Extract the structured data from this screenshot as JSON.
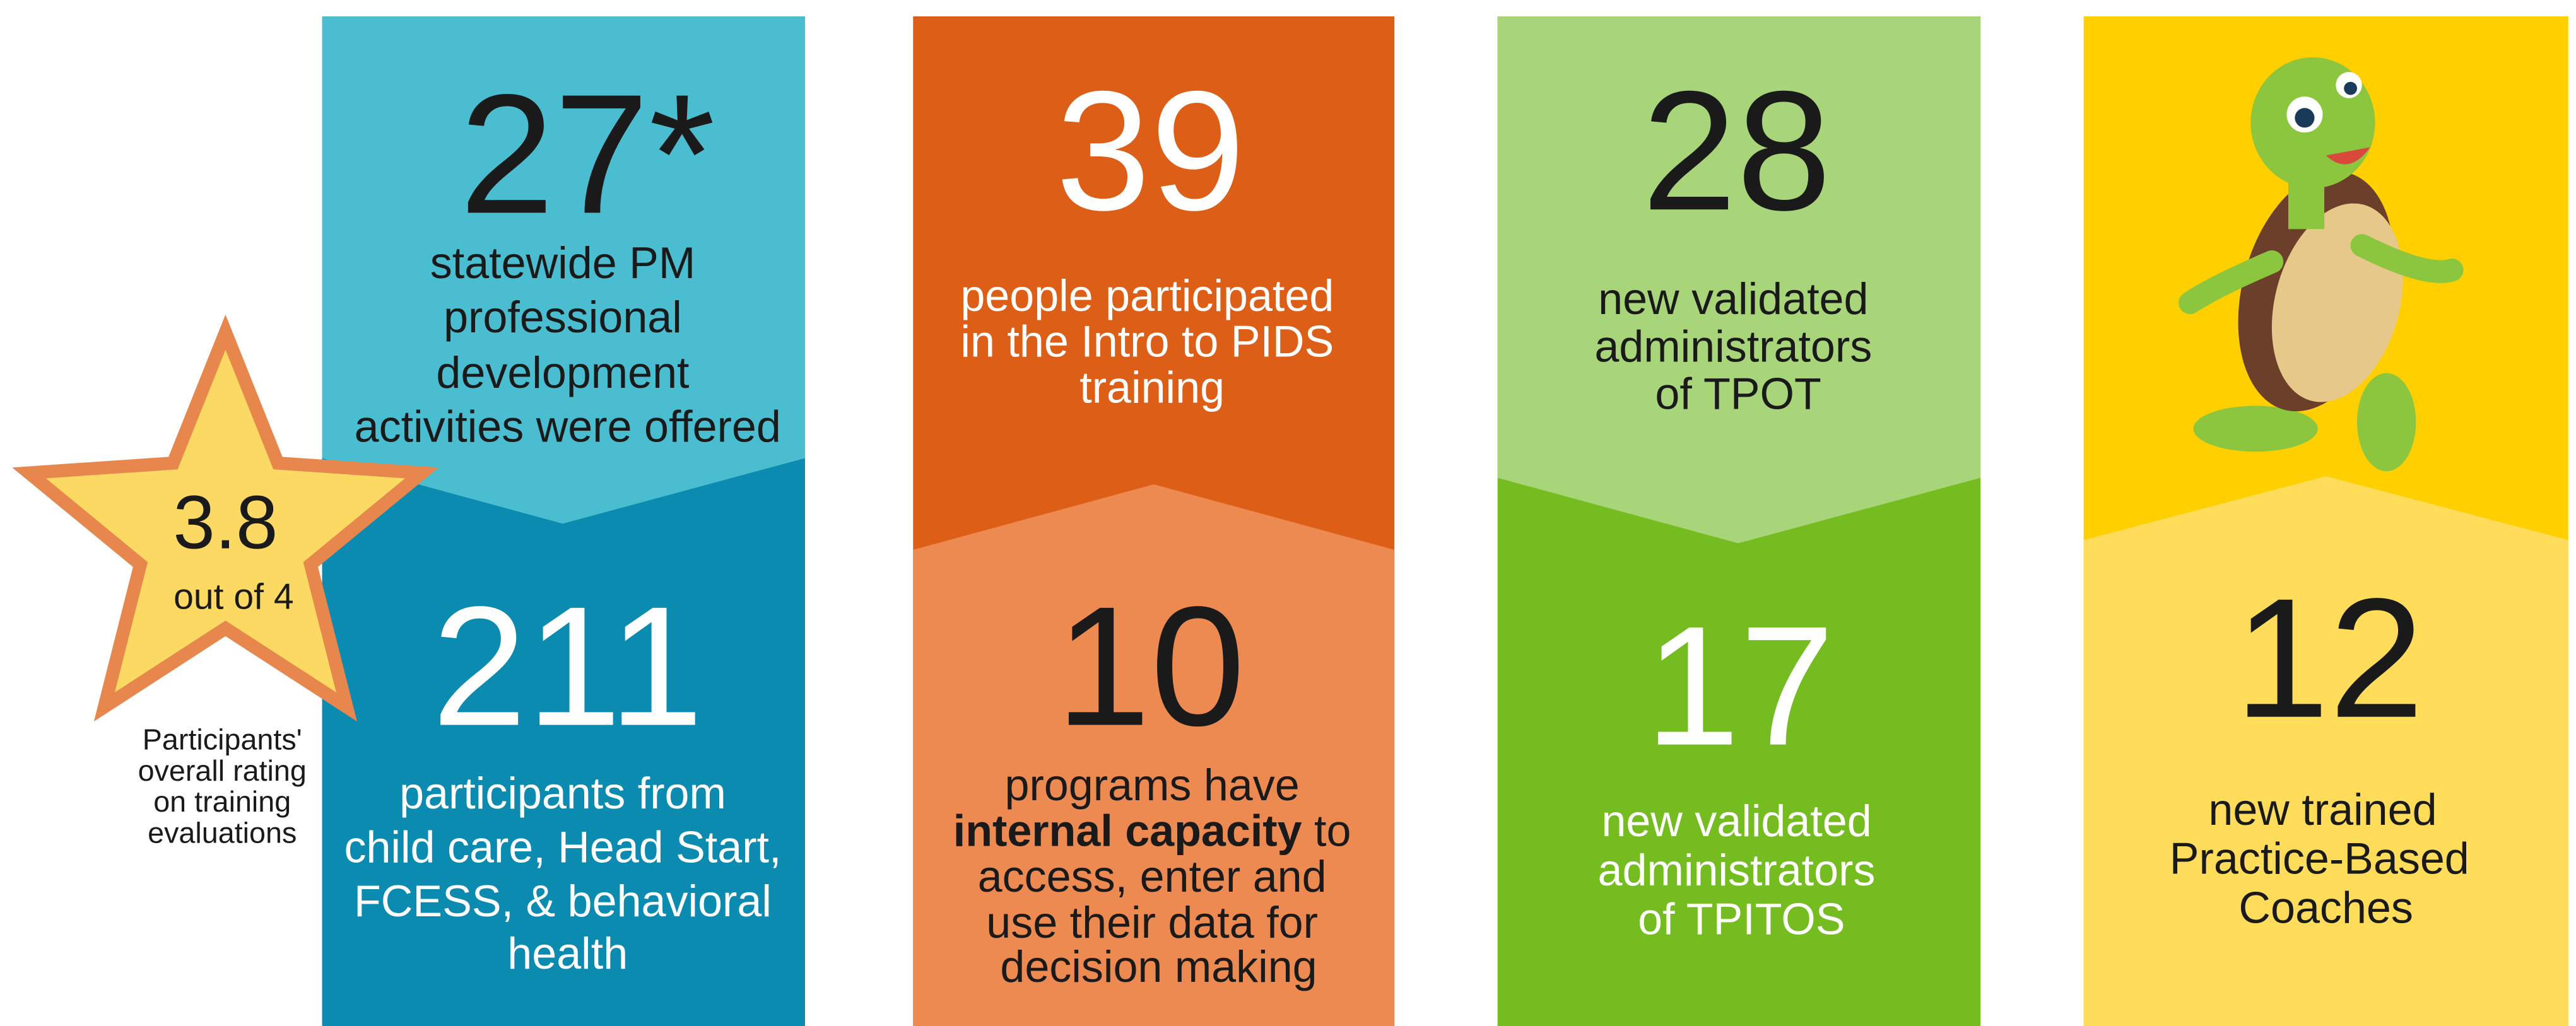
{
  "rating": {
    "score": "3.8",
    "scale": "out of 4",
    "caption": [
      "Participants'",
      "overall rating",
      "on training",
      "evaluations"
    ]
  },
  "panels": [
    {
      "top": {
        "number": "27*",
        "lines": [
          "statewide PM",
          "professional",
          "development",
          "activities were offered"
        ]
      },
      "bottom": {
        "number": "211",
        "lines": [
          "participants from",
          "child care, Head Start,",
          "FCESS, & behavioral",
          "health"
        ]
      }
    },
    {
      "top": {
        "number": "39",
        "lines": [
          "people participated",
          "in the Intro to PIDS",
          "training"
        ]
      },
      "bottom": {
        "number": "10",
        "lines": [
          "programs have",
          "internal capacity",
          "to",
          "access, enter and",
          "use their data for",
          "decision making"
        ]
      }
    },
    {
      "top": {
        "number": "28",
        "lines": [
          "new validated",
          "administrators",
          "of TPOT"
        ]
      },
      "bottom": {
        "number": "17",
        "lines": [
          "new validated",
          "administrators",
          "of TPITOS"
        ]
      }
    },
    {
      "bottom": {
        "number": "12",
        "lines": [
          "new trained",
          "Practice-Based",
          "Coaches"
        ]
      }
    }
  ]
}
